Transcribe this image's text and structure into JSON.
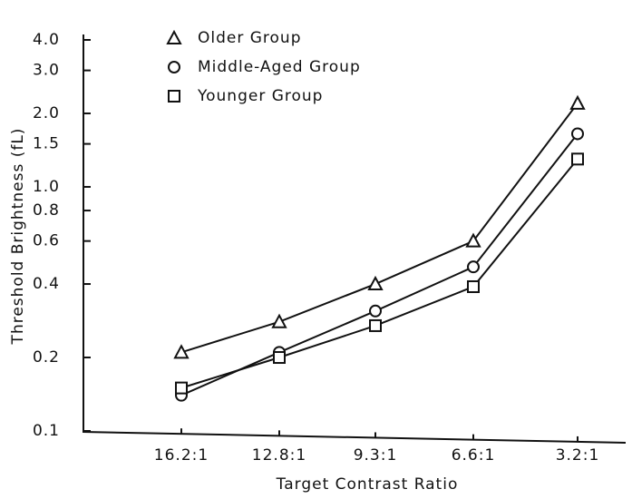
{
  "chart_data": {
    "type": "line",
    "x_label": "Target Contrast Ratio",
    "y_label": "Threshold Brightness (fL)",
    "categories": [
      "16.2:1",
      "12.8:1",
      "9.3:1",
      "6.6:1",
      "3.2:1"
    ],
    "log_scale": true,
    "ylim": [
      0.1,
      4
    ],
    "yticks": [
      0.1,
      0.2,
      0.4,
      0.6,
      0.8,
      {
        "value": 1,
        "label": "1.0"
      },
      1.5,
      {
        "value": 2,
        "label": "2.0"
      },
      {
        "value": 3,
        "label": "3.0"
      },
      {
        "value": 4,
        "label": "4.0"
      }
    ],
    "legend": "upper left",
    "series": [
      {
        "name": "Older Group",
        "marker": "triangle",
        "color": "#111111",
        "values": [
          0.21,
          0.28,
          0.4,
          0.6,
          2.2
        ]
      },
      {
        "name": "Middle-Aged Group",
        "marker": "circle",
        "color": "#111111",
        "values": [
          0.14,
          0.21,
          0.31,
          0.47,
          1.65
        ]
      },
      {
        "name": "Younger Group",
        "marker": "square",
        "color": "#111111",
        "values": [
          0.15,
          0.2,
          0.27,
          0.39,
          1.3
        ]
      }
    ]
  }
}
